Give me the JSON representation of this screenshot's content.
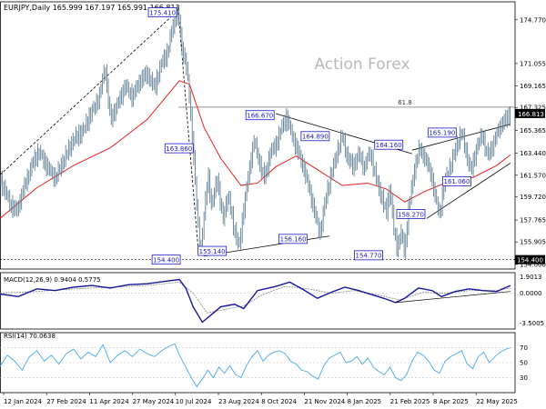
{
  "chart_data": {
    "type": "candlestick",
    "symbol_header": "EURJPY,Daily  165.999 167.197 165.991 166.813",
    "watermark": "Action Forex",
    "last_price": "166.813",
    "price_axis": {
      "ticks": [
        "174.770",
        "171.055",
        "169.165",
        "167.325",
        "165.365",
        "163.440",
        "161.570",
        "159.720",
        "157.765",
        "155.905",
        "154.000"
      ],
      "tick_values": [
        174.77,
        171.055,
        169.165,
        167.325,
        165.365,
        163.44,
        161.57,
        159.72,
        157.765,
        155.905,
        154.0
      ],
      "range": [
        153.6,
        176.3
      ],
      "extra_label": "154.400"
    },
    "x_axis": {
      "labels": [
        "12 Jan 2024",
        "27 Feb 2024",
        "11 Apr 2024",
        "27 May 2024",
        "10 Jul 2024",
        "23 Aug 2024",
        "8 Oct 2024",
        "21 Nov 2024",
        "8 Jan 2025",
        "21 Feb 2025",
        "8 Apr 2025",
        "22 May 2025"
      ]
    },
    "price_path": [
      [
        0,
        161.2
      ],
      [
        6,
        160.1
      ],
      [
        12,
        159.0
      ],
      [
        18,
        158.5
      ],
      [
        26,
        160.5
      ],
      [
        34,
        162.3
      ],
      [
        42,
        163.6
      ],
      [
        52,
        162.2
      ],
      [
        60,
        161.3
      ],
      [
        70,
        163.0
      ],
      [
        80,
        164.6
      ],
      [
        90,
        165.3
      ],
      [
        100,
        167.0
      ],
      [
        108,
        168.2
      ],
      [
        114,
        170.8
      ],
      [
        120,
        166.3
      ],
      [
        128,
        167.6
      ],
      [
        136,
        169.2
      ],
      [
        144,
        168.2
      ],
      [
        152,
        169.6
      ],
      [
        160,
        170.2
      ],
      [
        168,
        169.0
      ],
      [
        176,
        171.2
      ],
      [
        182,
        171.9
      ],
      [
        186,
        173.6
      ],
      [
        190,
        175.0
      ],
      [
        194,
        175.2
      ],
      [
        198,
        172.2
      ],
      [
        202,
        171.2
      ],
      [
        206,
        168.2
      ],
      [
        210,
        163.8
      ],
      [
        214,
        158.8
      ],
      [
        218,
        154.7
      ],
      [
        222,
        158.2
      ],
      [
        226,
        161.8
      ],
      [
        230,
        158.8
      ],
      [
        236,
        161.4
      ],
      [
        242,
        157.8
      ],
      [
        248,
        159.9
      ],
      [
        254,
        157.2
      ],
      [
        260,
        155.4
      ],
      [
        264,
        158.2
      ],
      [
        270,
        161.5
      ],
      [
        276,
        164.6
      ],
      [
        282,
        162.6
      ],
      [
        288,
        161.3
      ],
      [
        294,
        163.6
      ],
      [
        300,
        164.1
      ],
      [
        306,
        165.6
      ],
      [
        312,
        166.5
      ],
      [
        318,
        164.8
      ],
      [
        324,
        163.6
      ],
      [
        330,
        162.2
      ],
      [
        336,
        160.5
      ],
      [
        342,
        158.4
      ],
      [
        348,
        156.6
      ],
      [
        354,
        159.6
      ],
      [
        360,
        161.6
      ],
      [
        366,
        163.4
      ],
      [
        372,
        164.9
      ],
      [
        378,
        163.0
      ],
      [
        384,
        162.3
      ],
      [
        390,
        163.4
      ],
      [
        396,
        162.2
      ],
      [
        402,
        163.6
      ],
      [
        408,
        161.6
      ],
      [
        414,
        159.9
      ],
      [
        420,
        158.4
      ],
      [
        424,
        160.6
      ],
      [
        428,
        157.0
      ],
      [
        432,
        155.3
      ],
      [
        436,
        156.8
      ],
      [
        440,
        155.0
      ],
      [
        444,
        158.6
      ],
      [
        450,
        161.8
      ],
      [
        456,
        163.9
      ],
      [
        462,
        163.0
      ],
      [
        468,
        161.9
      ],
      [
        474,
        159.4
      ],
      [
        478,
        158.3
      ],
      [
        484,
        161.2
      ],
      [
        490,
        162.3
      ],
      [
        496,
        164.0
      ],
      [
        502,
        165.2
      ],
      [
        508,
        163.1
      ],
      [
        512,
        161.9
      ],
      [
        518,
        163.8
      ],
      [
        524,
        165.1
      ],
      [
        530,
        163.2
      ],
      [
        536,
        164.1
      ],
      [
        542,
        165.5
      ],
      [
        548,
        166.2
      ],
      [
        555,
        166.8
      ]
    ],
    "moving_average": [
      [
        0,
        157.9
      ],
      [
        40,
        160.5
      ],
      [
        80,
        162.4
      ],
      [
        120,
        163.9
      ],
      [
        160,
        166.3
      ],
      [
        195,
        169.6
      ],
      [
        206,
        169.3
      ],
      [
        222,
        165.6
      ],
      [
        240,
        163.0
      ],
      [
        262,
        160.7
      ],
      [
        280,
        160.9
      ],
      [
        300,
        162.3
      ],
      [
        322,
        163.2
      ],
      [
        346,
        162.0
      ],
      [
        372,
        160.7
      ],
      [
        400,
        160.9
      ],
      [
        420,
        160.4
      ],
      [
        440,
        159.3
      ],
      [
        462,
        160.2
      ],
      [
        490,
        161.1
      ],
      [
        515,
        161.4
      ],
      [
        540,
        162.4
      ],
      [
        555,
        163.3
      ]
    ],
    "annotations": [
      {
        "label": "175.410",
        "x": 194,
        "y": 175.41,
        "side": "left"
      },
      {
        "label": "166.670",
        "x": 300,
        "y": 166.67,
        "side": "left"
      },
      {
        "label": "164.890",
        "x": 360,
        "y": 164.89,
        "side": "left"
      },
      {
        "label": "164.160",
        "x": 440,
        "y": 164.16,
        "side": "left"
      },
      {
        "label": "165.190",
        "x": 498,
        "y": 165.19,
        "side": "left"
      },
      {
        "label": "163.860",
        "x": 212,
        "y": 163.86,
        "side": "left"
      },
      {
        "label": "161.060",
        "x": 514,
        "y": 161.06,
        "side": "left"
      },
      {
        "label": "158.270",
        "x": 464,
        "y": 158.27,
        "side": "left"
      },
      {
        "label": "156.160",
        "x": 336,
        "y": 156.16,
        "side": "left"
      },
      {
        "label": "155.140",
        "x": 248,
        "y": 155.14,
        "side": "left"
      },
      {
        "label": "154.770",
        "x": 418,
        "y": 154.77,
        "side": "left"
      },
      {
        "label": "154.400",
        "x": 198,
        "y": 154.4,
        "side": "left"
      }
    ],
    "fib_level": {
      "label": "61.8",
      "value": 167.35
    },
    "macd": {
      "label": "MACD(12,26,9) 0.9404 0.5775",
      "ticks": [
        "1.9013",
        "0.0000",
        "-3.5005"
      ],
      "tick_values": [
        1.9013,
        0.0,
        -3.5005
      ],
      "range": [
        -4.2,
        2.4
      ],
      "main": [
        [
          0,
          -0.1
        ],
        [
          20,
          -0.4
        ],
        [
          40,
          0.5
        ],
        [
          60,
          0.3
        ],
        [
          80,
          0.7
        ],
        [
          100,
          0.9
        ],
        [
          120,
          0.6
        ],
        [
          140,
          1.0
        ],
        [
          160,
          1.1
        ],
        [
          180,
          1.4
        ],
        [
          195,
          1.6
        ],
        [
          202,
          0.6
        ],
        [
          210,
          -1.6
        ],
        [
          220,
          -3.4
        ],
        [
          230,
          -2.5
        ],
        [
          240,
          -1.6
        ],
        [
          255,
          -1.3
        ],
        [
          265,
          -1.8
        ],
        [
          280,
          0.3
        ],
        [
          300,
          0.8
        ],
        [
          315,
          1.3
        ],
        [
          330,
          0.4
        ],
        [
          345,
          -0.6
        ],
        [
          360,
          0.1
        ],
        [
          375,
          0.7
        ],
        [
          390,
          0.3
        ],
        [
          405,
          -0.2
        ],
        [
          420,
          -0.7
        ],
        [
          430,
          -1.1
        ],
        [
          440,
          -0.6
        ],
        [
          455,
          0.6
        ],
        [
          470,
          0.3
        ],
        [
          480,
          -0.4
        ],
        [
          495,
          0.2
        ],
        [
          510,
          0.5
        ],
        [
          525,
          0.3
        ],
        [
          540,
          0.2
        ],
        [
          555,
          0.9
        ]
      ],
      "signal": [
        [
          0,
          0.0
        ],
        [
          40,
          0.2
        ],
        [
          80,
          0.5
        ],
        [
          120,
          0.7
        ],
        [
          160,
          0.9
        ],
        [
          195,
          1.3
        ],
        [
          210,
          0.0
        ],
        [
          225,
          -2.3
        ],
        [
          240,
          -2.0
        ],
        [
          265,
          -1.5
        ],
        [
          285,
          -0.2
        ],
        [
          310,
          0.8
        ],
        [
          335,
          0.5
        ],
        [
          360,
          0.0
        ],
        [
          385,
          0.3
        ],
        [
          410,
          -0.2
        ],
        [
          435,
          -0.8
        ],
        [
          460,
          0.1
        ],
        [
          485,
          0.0
        ],
        [
          510,
          0.3
        ],
        [
          540,
          0.3
        ],
        [
          555,
          0.6
        ]
      ]
    },
    "rsi": {
      "label": "RSI(14) 70.0638",
      "ticks": [
        "70",
        "50",
        "30"
      ],
      "tick_values": [
        70,
        50,
        30
      ],
      "range": [
        10,
        90
      ],
      "values": [
        [
          0,
          45
        ],
        [
          8,
          60
        ],
        [
          16,
          52
        ],
        [
          24,
          40
        ],
        [
          32,
          58
        ],
        [
          40,
          66
        ],
        [
          48,
          52
        ],
        [
          56,
          60
        ],
        [
          64,
          48
        ],
        [
          72,
          62
        ],
        [
          80,
          68
        ],
        [
          88,
          55
        ],
        [
          96,
          64
        ],
        [
          104,
          58
        ],
        [
          112,
          74
        ],
        [
          120,
          50
        ],
        [
          128,
          60
        ],
        [
          136,
          66
        ],
        [
          144,
          58
        ],
        [
          152,
          68
        ],
        [
          160,
          62
        ],
        [
          168,
          58
        ],
        [
          176,
          66
        ],
        [
          184,
          72
        ],
        [
          190,
          75
        ],
        [
          196,
          58
        ],
        [
          202,
          44
        ],
        [
          208,
          30
        ],
        [
          214,
          18
        ],
        [
          220,
          28
        ],
        [
          226,
          40
        ],
        [
          232,
          30
        ],
        [
          238,
          44
        ],
        [
          244,
          36
        ],
        [
          250,
          46
        ],
        [
          256,
          34
        ],
        [
          262,
          30
        ],
        [
          268,
          46
        ],
        [
          274,
          58
        ],
        [
          280,
          66
        ],
        [
          286,
          52
        ],
        [
          292,
          60
        ],
        [
          298,
          64
        ],
        [
          304,
          66
        ],
        [
          310,
          62
        ],
        [
          316,
          52
        ],
        [
          322,
          48
        ],
        [
          328,
          40
        ],
        [
          334,
          38
        ],
        [
          340,
          32
        ],
        [
          346,
          28
        ],
        [
          352,
          46
        ],
        [
          358,
          56
        ],
        [
          364,
          60
        ],
        [
          370,
          64
        ],
        [
          376,
          50
        ],
        [
          382,
          52
        ],
        [
          388,
          58
        ],
        [
          394,
          48
        ],
        [
          400,
          56
        ],
        [
          406,
          44
        ],
        [
          412,
          38
        ],
        [
          418,
          34
        ],
        [
          424,
          44
        ],
        [
          430,
          30
        ],
        [
          436,
          26
        ],
        [
          442,
          34
        ],
        [
          448,
          52
        ],
        [
          454,
          64
        ],
        [
          460,
          60
        ],
        [
          466,
          52
        ],
        [
          472,
          40
        ],
        [
          478,
          36
        ],
        [
          484,
          52
        ],
        [
          490,
          58
        ],
        [
          496,
          62
        ],
        [
          502,
          66
        ],
        [
          508,
          48
        ],
        [
          514,
          42
        ],
        [
          520,
          58
        ],
        [
          526,
          64
        ],
        [
          532,
          50
        ],
        [
          538,
          58
        ],
        [
          544,
          64
        ],
        [
          550,
          68
        ],
        [
          555,
          70
        ]
      ]
    }
  }
}
